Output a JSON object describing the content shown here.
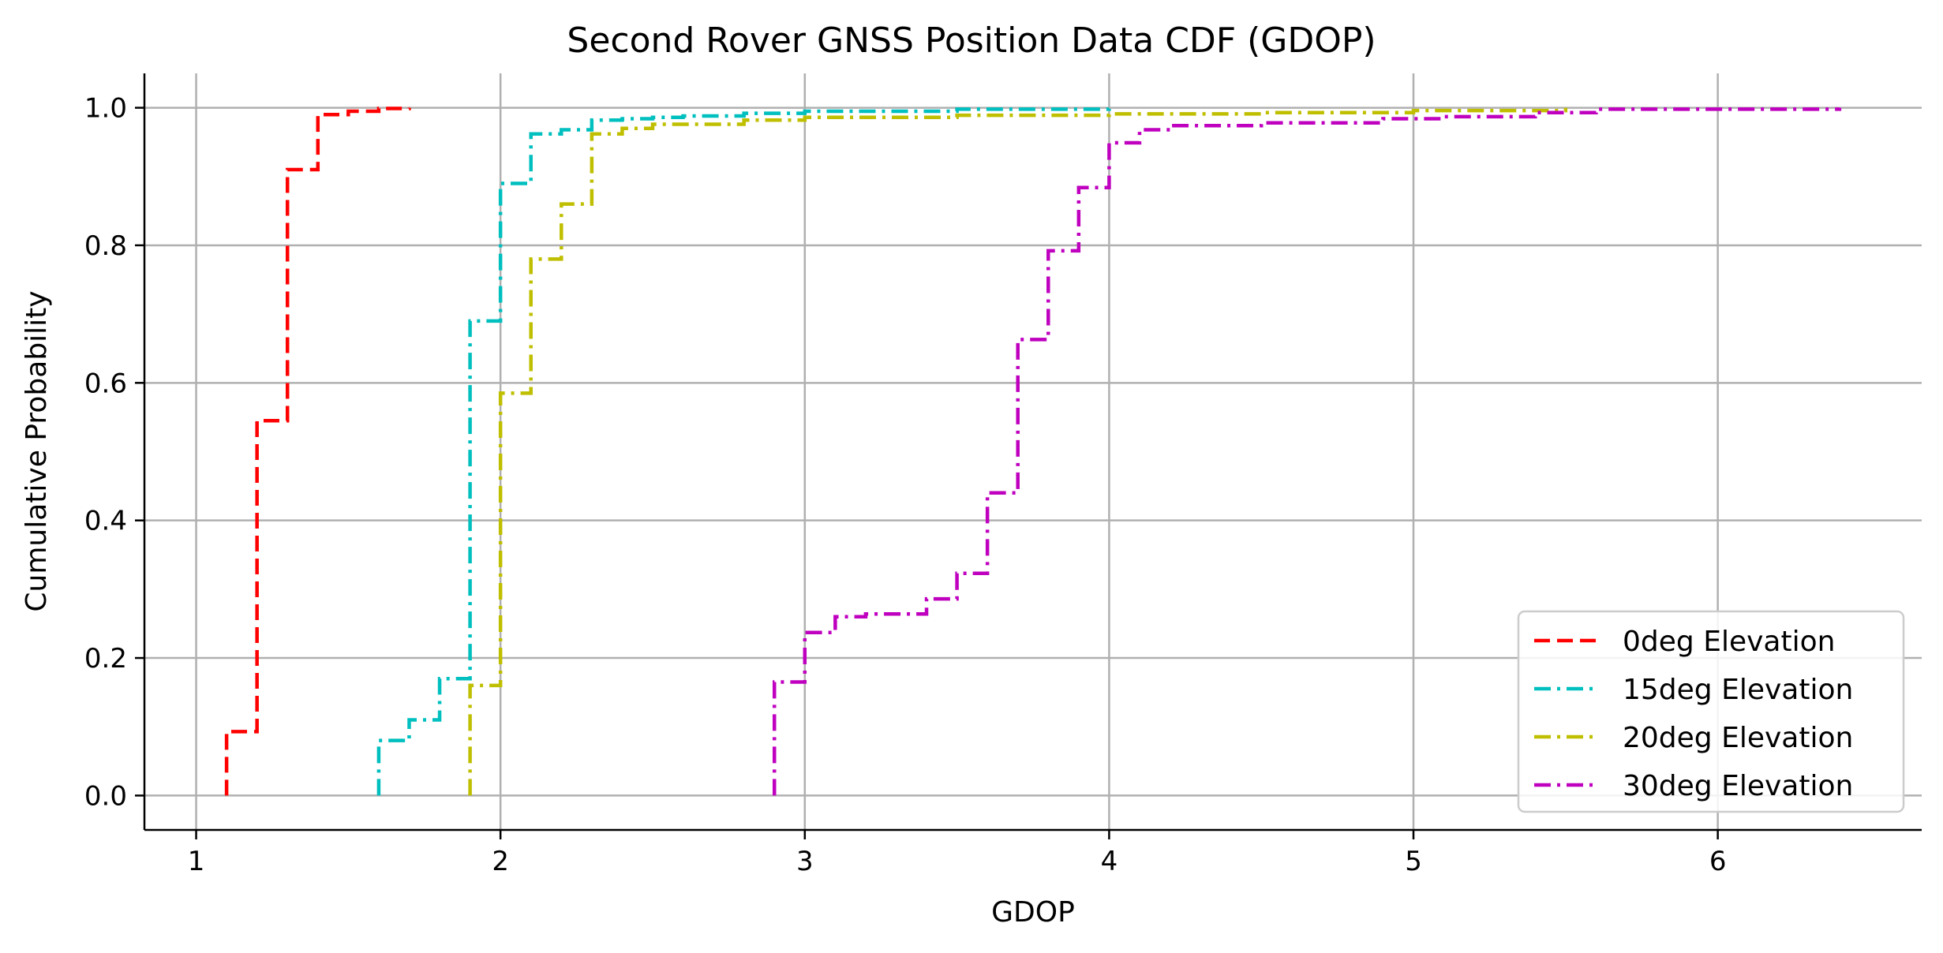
{
  "chart_data": {
    "type": "line",
    "drawstyle": "step",
    "title": "Second Rover GNSS Position Data CDF (GDOP)",
    "xlabel": "GDOP",
    "ylabel": "Cumulative Probability",
    "xlim": [
      0.83,
      6.67
    ],
    "ylim": [
      -0.05,
      1.05
    ],
    "xticks": [
      1,
      2,
      3,
      4,
      5,
      6
    ],
    "xtick_labels": [
      "1",
      "2",
      "3",
      "4",
      "5",
      "6"
    ],
    "yticks": [
      0.0,
      0.2,
      0.4,
      0.6,
      0.8,
      1.0
    ],
    "ytick_labels": [
      "0.0",
      "0.2",
      "0.4",
      "0.6",
      "0.8",
      "1.0"
    ],
    "grid": true,
    "legend": {
      "position": "bottom-right"
    },
    "series": [
      {
        "name": "0deg Elevation",
        "color": "#ff0000",
        "linestyle": "dashed",
        "x": [
          1.1,
          1.2,
          1.3,
          1.4,
          1.5,
          1.6,
          1.7
        ],
        "y": [
          0.093,
          0.545,
          0.91,
          0.99,
          0.995,
          0.999,
          1.0
        ]
      },
      {
        "name": "15deg Elevation",
        "color": "#00bfbf",
        "linestyle": "dashdot",
        "x": [
          1.6,
          1.7,
          1.8,
          1.9,
          2.0,
          2.1,
          2.2,
          2.3,
          2.4,
          2.5,
          2.6,
          2.8,
          3.0,
          3.5,
          4.0
        ],
        "y": [
          0.08,
          0.11,
          0.17,
          0.69,
          0.89,
          0.962,
          0.968,
          0.982,
          0.984,
          0.986,
          0.988,
          0.992,
          0.995,
          0.998,
          1.0
        ]
      },
      {
        "name": "20deg Elevation",
        "color": "#bfbf00",
        "linestyle": "dashdot",
        "x": [
          1.9,
          2.0,
          2.1,
          2.2,
          2.3,
          2.4,
          2.5,
          2.8,
          3.0,
          3.5,
          4.0,
          4.5,
          5.0,
          5.5
        ],
        "y": [
          0.16,
          0.585,
          0.78,
          0.86,
          0.962,
          0.97,
          0.976,
          0.982,
          0.986,
          0.989,
          0.991,
          0.993,
          0.996,
          1.0
        ]
      },
      {
        "name": "30deg Elevation",
        "color": "#bf00bf",
        "linestyle": "dashdot",
        "x": [
          2.9,
          3.0,
          3.1,
          3.2,
          3.4,
          3.5,
          3.6,
          3.7,
          3.8,
          3.9,
          4.0,
          4.1,
          4.2,
          4.5,
          4.9,
          5.1,
          5.4,
          5.6,
          6.4
        ],
        "y": [
          0.165,
          0.237,
          0.26,
          0.264,
          0.286,
          0.323,
          0.44,
          0.663,
          0.792,
          0.884,
          0.949,
          0.968,
          0.974,
          0.978,
          0.984,
          0.987,
          0.993,
          0.998,
          1.0
        ]
      }
    ]
  }
}
